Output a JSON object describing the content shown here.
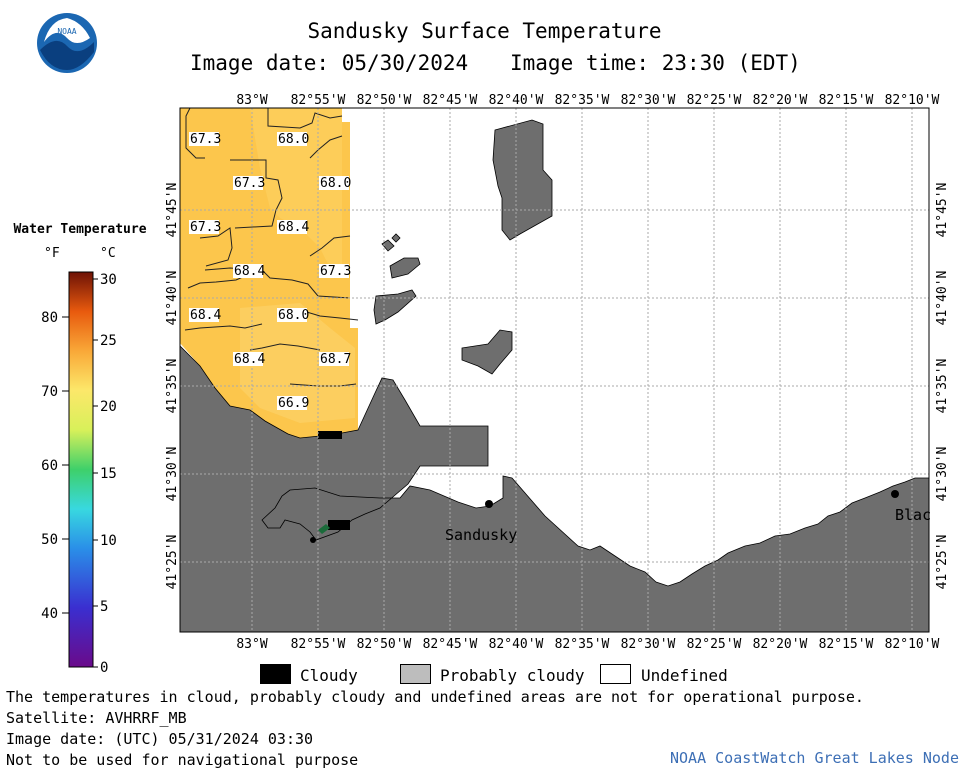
{
  "header": {
    "title": "Sandusky Surface Temperature",
    "image_date": "Image date: 05/30/2024",
    "image_time": "Image time: 23:30 (EDT)",
    "logo_text": "NOAA"
  },
  "colorbar": {
    "title": "Water Temperature",
    "unit_f": "°F",
    "unit_c": "°C",
    "f_ticks": [
      "80",
      "70",
      "60",
      "50",
      "40"
    ],
    "c_ticks": [
      "30",
      "25",
      "20",
      "15",
      "10",
      "5",
      "0"
    ]
  },
  "map": {
    "lon_labels": [
      "83°W",
      "82°55'W",
      "82°50'W",
      "82°45'W",
      "82°40'W",
      "82°35'W",
      "82°30'W",
      "82°25'W",
      "82°20'W",
      "82°15'W",
      "82°10'W"
    ],
    "lat_labels": [
      "41°45'N",
      "41°40'N",
      "41°35'N",
      "41°30'N",
      "41°25'N"
    ],
    "temperature_labels": [
      "67.3",
      "68.0",
      "67.3",
      "68.0",
      "67.3",
      "68.4",
      "68.4",
      "67.3",
      "68.4",
      "68.0",
      "68.4",
      "68.7",
      "66.9"
    ],
    "places": [
      "Sandusky",
      "Blac"
    ],
    "colors": {
      "land": "#6e6e6e",
      "water_warm": "#fcc64c",
      "cloudy": "#000000",
      "undefined": "#ffffff"
    }
  },
  "legend": {
    "cloudy": "Cloudy",
    "probably_cloudy": "Probably cloudy",
    "undefined": "Undefined"
  },
  "footer": {
    "note": "The temperatures in cloud, probably cloudy and undefined areas are not for operational purpose.",
    "satellite": "Satellite: AVHRRF_MB",
    "utc_date": "Image date: (UTC) 05/31/2024  03:30",
    "nav": "Not to be used for navigational purpose",
    "credit": "NOAA CoastWatch Great Lakes Node"
  }
}
